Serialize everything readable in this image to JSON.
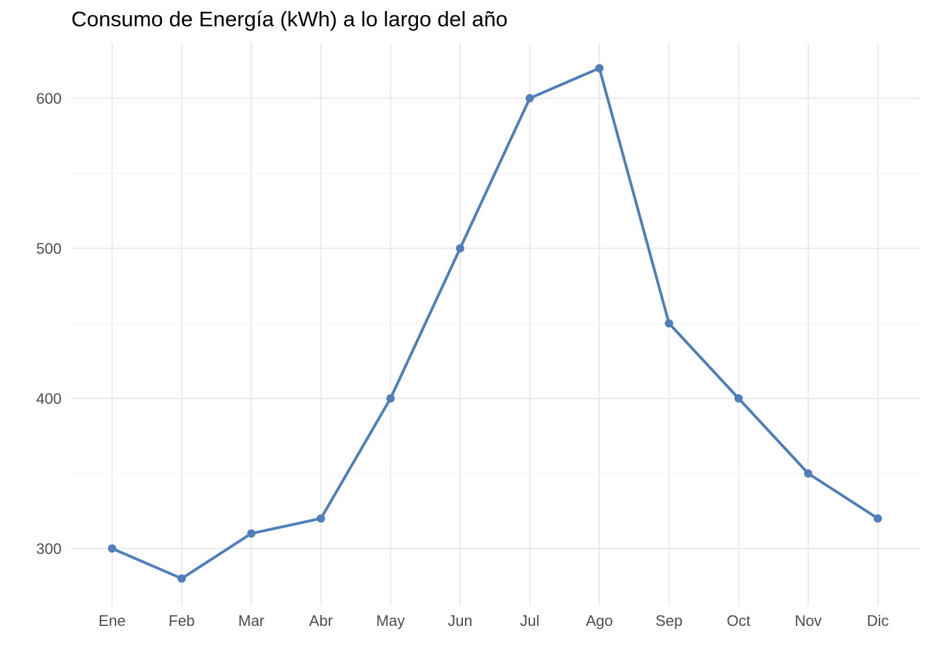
{
  "chart_data": {
    "type": "line",
    "title": "Consumo de Energía (kWh) a lo largo del año",
    "xlabel": "",
    "ylabel": "",
    "categories": [
      "Ene",
      "Feb",
      "Mar",
      "Abr",
      "May",
      "Jun",
      "Jul",
      "Ago",
      "Sep",
      "Oct",
      "Nov",
      "Dic"
    ],
    "series": [
      {
        "values": [
          300,
          280,
          310,
          320,
          400,
          500,
          600,
          620,
          450,
          400,
          350,
          320
        ],
        "color": "#4f7fb8"
      }
    ],
    "ylim": [
      262,
      636
    ],
    "yticks": [
      300,
      400,
      500,
      600
    ],
    "grid": true,
    "legend": "none"
  }
}
